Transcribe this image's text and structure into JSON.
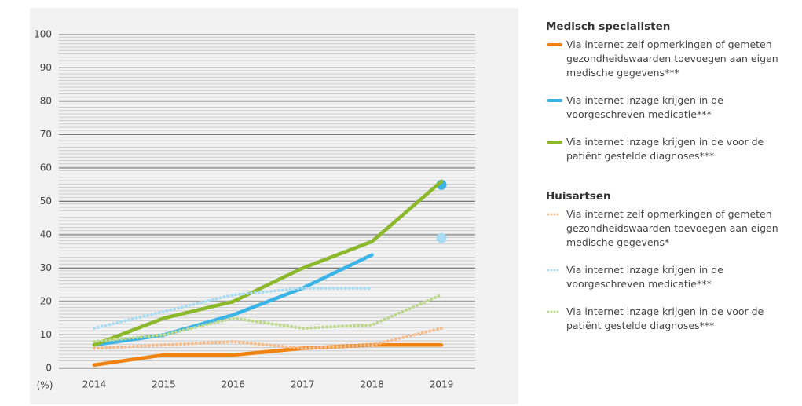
{
  "chart_data": {
    "type": "line",
    "y_label": "(%)",
    "categories": [
      "2014",
      "2015",
      "2016",
      "2017",
      "2018",
      "2019"
    ],
    "ylim": [
      0,
      100
    ],
    "yticks": [
      0,
      10,
      20,
      30,
      40,
      50,
      60,
      70,
      80,
      90,
      100
    ],
    "grid": true,
    "groups": [
      {
        "title": "Medisch specialisten",
        "line_style": "solid",
        "series": [
          {
            "name": "Via internet zelf opmerkingen of gemeten gezondheidswaarden toevoegen aan eigen medische gegevens***",
            "color": "#f0820f",
            "values": [
              1,
              4,
              4,
              6,
              7,
              7
            ]
          },
          {
            "name": "Via internet inzage krijgen in de voorgeschreven medicatie***",
            "color": "#3ab4e6",
            "values": [
              7,
              10,
              16,
              24,
              34,
              null
            ],
            "marker_values": [
              null,
              null,
              null,
              null,
              null,
              55
            ]
          },
          {
            "name": "Via internet inzage krijgen in de voor de patiënt gestelde diagnoses***",
            "color": "#8cb82b",
            "values": [
              7,
              15,
              20,
              30,
              38,
              56
            ]
          }
        ]
      },
      {
        "title": "Huisartsen",
        "line_style": "dotted",
        "series": [
          {
            "name": "Via internet zelf opmerkingen of gemeten gezondheidswaarden toevoegen aan eigen medische gegevens*",
            "color": "#f6bc8c",
            "values": [
              6,
              7,
              8,
              6,
              7,
              12
            ]
          },
          {
            "name": "Via internet inzage krijgen in de voorgeschreven medicatie***",
            "color": "#a9dcf3",
            "values": [
              12,
              17,
              22,
              24,
              24,
              null
            ],
            "marker_values": [
              null,
              null,
              null,
              null,
              null,
              39
            ]
          },
          {
            "name": "Via internet inzage krijgen in de voor de patiënt gestelde diagnoses***",
            "color": "#bcd88a",
            "values": [
              8,
              10,
              15,
              12,
              13,
              22
            ]
          }
        ]
      }
    ]
  }
}
